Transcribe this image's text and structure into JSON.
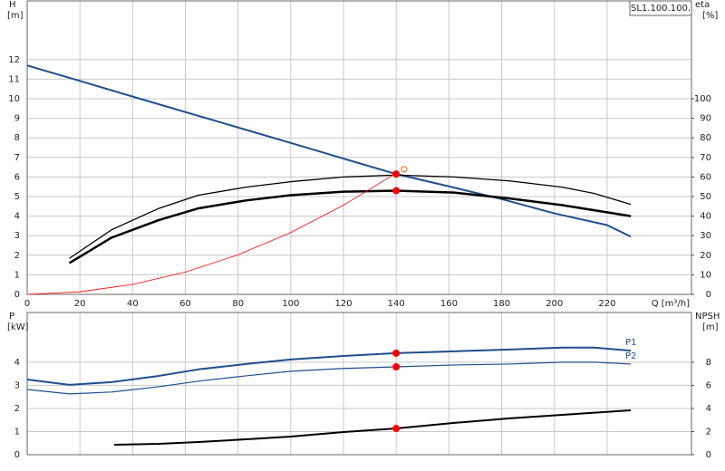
{
  "chart_data": [
    {
      "type": "line",
      "y_label": "H",
      "y_unit": "[m]",
      "y2_label": "eta",
      "y2_unit": "[%]",
      "x_label": "Q [m³/h]",
      "tag": "SL1.100.100.",
      "xlim": [
        0,
        252
      ],
      "xticks": [
        0,
        20,
        40,
        60,
        80,
        100,
        120,
        140,
        160,
        180,
        200,
        220
      ],
      "ylim": [
        0,
        15
      ],
      "yticks": [
        0,
        1,
        2,
        3,
        4,
        5,
        6,
        7,
        8,
        9,
        10,
        11,
        12
      ],
      "y2lim": [
        0,
        150
      ],
      "y2ticks": [
        0,
        10,
        20,
        30,
        40,
        50,
        60,
        70,
        80,
        90,
        100
      ],
      "grid": true,
      "show_xtick_labels": true,
      "series": [
        {
          "color": "#1f4e8c",
          "width": 2,
          "x": [
            0,
            20,
            40,
            60,
            80,
            100,
            120,
            140,
            160,
            180,
            200,
            220,
            229
          ],
          "values": [
            11.7,
            10.91,
            10.11,
            9.32,
            8.53,
            7.74,
            6.94,
            6.15,
            5.52,
            4.87,
            4.14,
            3.54,
            2.95
          ]
        },
        {
          "color": "#000000",
          "width": 2.5,
          "axis": "y2",
          "x": [
            16,
            32,
            50,
            65,
            83,
            100,
            120,
            140,
            162,
            183,
            203,
            229
          ],
          "values": [
            16,
            29,
            38,
            44,
            48,
            50.7,
            52.5,
            53,
            52,
            49,
            45.6,
            40
          ]
        },
        {
          "color": "#000000",
          "width": 1.3,
          "axis": "y2",
          "x": [
            16,
            32,
            50,
            65,
            83,
            100,
            120,
            140,
            162,
            183,
            203,
            215,
            229
          ],
          "values": [
            18.4,
            33,
            44,
            50.7,
            54.8,
            57.6,
            60,
            61,
            60,
            58,
            54.8,
            51.6,
            46
          ]
        },
        {
          "color": "#ff0000",
          "width": 0.8,
          "x": [
            0,
            20,
            40,
            60,
            80,
            100,
            120,
            140
          ],
          "values": [
            0,
            0.13,
            0.51,
            1.14,
            2.02,
            3.16,
            4.56,
            6.2
          ]
        }
      ],
      "markers": [
        {
          "x": 140,
          "y": 6.15,
          "color": "#ff0000"
        },
        {
          "x": 140,
          "y": 53,
          "axis": "y2",
          "color": "#ff0000"
        },
        {
          "x": 143,
          "y": 6.4,
          "color": "#ff6600",
          "style": "open"
        }
      ]
    },
    {
      "type": "line",
      "y_label": "P",
      "y_unit": "[kW]",
      "y2_label": "NPSH",
      "y2_unit": "[m]",
      "xlim": [
        0,
        252
      ],
      "xticks": [
        0,
        20,
        40,
        60,
        80,
        100,
        120,
        140,
        160,
        180,
        200,
        220
      ],
      "ylim": [
        0,
        6.15
      ],
      "yticks": [
        0,
        1,
        2,
        3,
        4
      ],
      "y2lim": [
        0,
        12.3
      ],
      "y2ticks": [
        0,
        2,
        4,
        6,
        8
      ],
      "grid": true,
      "show_xtick_labels": false,
      "series": [
        {
          "name": "P1",
          "color": "#1f4e8c",
          "width": 2,
          "x": [
            0,
            16,
            32,
            50,
            65,
            83,
            100,
            120,
            140,
            162,
            183,
            203,
            215,
            229
          ],
          "values": [
            3.25,
            3.02,
            3.14,
            3.41,
            3.69,
            3.92,
            4.12,
            4.27,
            4.39,
            4.47,
            4.55,
            4.63,
            4.63,
            4.5
          ]
        },
        {
          "name": "P2",
          "color": "#1f4e8c",
          "width": 1.2,
          "x": [
            0,
            16,
            32,
            50,
            65,
            83,
            100,
            120,
            140,
            162,
            183,
            203,
            215,
            229
          ],
          "values": [
            2.82,
            2.63,
            2.71,
            2.94,
            3.18,
            3.41,
            3.61,
            3.73,
            3.8,
            3.88,
            3.92,
            4.0,
            4.0,
            3.92
          ]
        },
        {
          "color": "#000000",
          "width": 2,
          "axis": "y2",
          "x": [
            33,
            50,
            65,
            83,
            100,
            120,
            140,
            162,
            183,
            203,
            229
          ],
          "values": [
            0.86,
            0.94,
            1.1,
            1.33,
            1.57,
            1.96,
            2.27,
            2.75,
            3.14,
            3.45,
            3.84
          ]
        }
      ],
      "markers": [
        {
          "x": 140,
          "y": 4.39,
          "color": "#ff0000"
        },
        {
          "x": 140,
          "y": 3.8,
          "color": "#ff0000"
        },
        {
          "x": 140,
          "y": 2.27,
          "axis": "y2",
          "color": "#ff0000"
        }
      ]
    }
  ]
}
